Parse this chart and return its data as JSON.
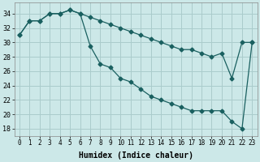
{
  "xlabel": "Humidex (Indice chaleur)",
  "bg_color": "#cce8e8",
  "grid_color": "#aacccc",
  "line_color": "#1a6060",
  "xlim": [
    -0.5,
    23.5
  ],
  "ylim": [
    17,
    35.5
  ],
  "yticks": [
    18,
    20,
    22,
    24,
    26,
    28,
    30,
    32,
    34
  ],
  "xticks": [
    0,
    1,
    2,
    3,
    4,
    5,
    6,
    7,
    8,
    9,
    10,
    11,
    12,
    13,
    14,
    15,
    16,
    17,
    18,
    19,
    20,
    21,
    22,
    23
  ],
  "line1_x": [
    0,
    1,
    2,
    3,
    4,
    5,
    6,
    7,
    8,
    9,
    10,
    11,
    12,
    13,
    14,
    15,
    16,
    17,
    18,
    19,
    20,
    21,
    22,
    23
  ],
  "line1_y": [
    31.0,
    33.0,
    33.0,
    34.0,
    34.0,
    34.5,
    34.0,
    33.5,
    33.0,
    32.5,
    32.0,
    31.5,
    31.0,
    30.5,
    30.0,
    29.5,
    29.0,
    29.0,
    28.5,
    28.0,
    28.5,
    25.0,
    30.0,
    30.0
  ],
  "line2_x": [
    0,
    1,
    2,
    3,
    4,
    5,
    6,
    7,
    8,
    9,
    10,
    11,
    12,
    13,
    14,
    15,
    16,
    17,
    18,
    19,
    20,
    21,
    22,
    23
  ],
  "line2_y": [
    31.0,
    33.0,
    33.0,
    34.0,
    34.0,
    34.5,
    34.0,
    29.5,
    27.0,
    26.5,
    25.0,
    24.5,
    23.5,
    22.5,
    22.0,
    21.5,
    21.0,
    20.5,
    20.5,
    20.5,
    20.5,
    19.0,
    18.0,
    30.0
  ]
}
